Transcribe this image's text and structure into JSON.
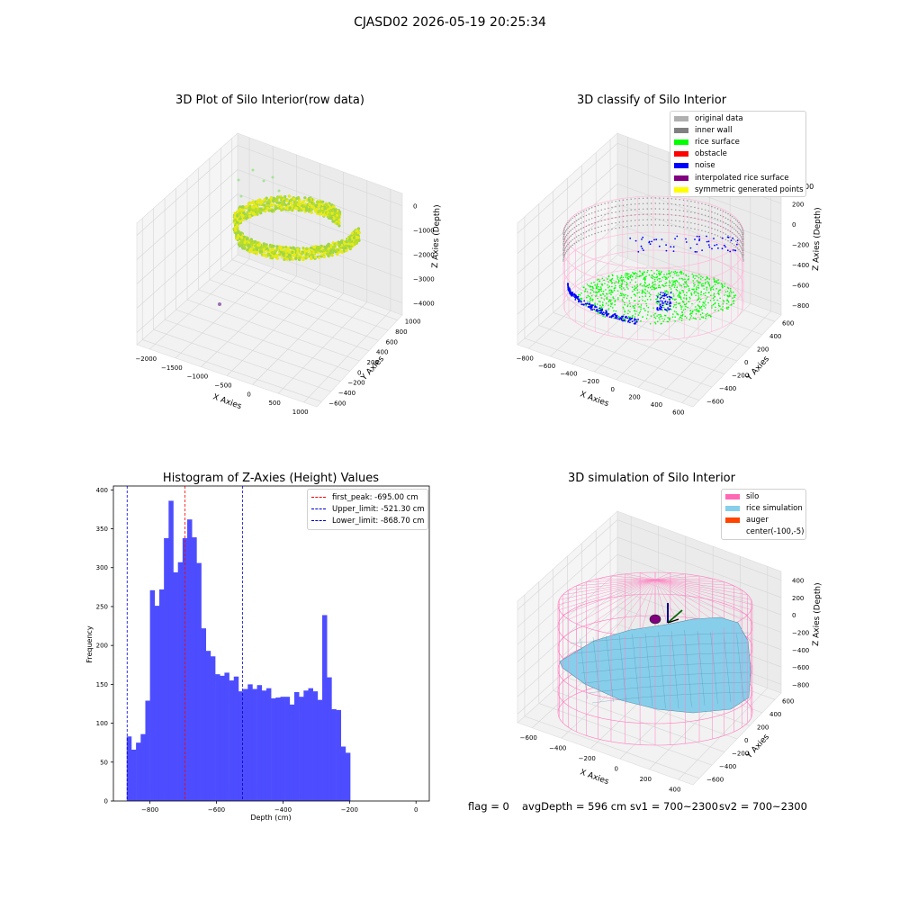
{
  "suptitle": "CJASD02 2026-05-19 20:25:34",
  "panel_raw": {
    "title": "3D Plot of Silo Interior(row data)",
    "xlabel": "X Axies",
    "ylabel": "Y Axies",
    "zlabel": "Z Axies (Depth)",
    "x_ticks": [
      "−2000",
      "−1500",
      "−1000",
      "−500",
      "0",
      "500",
      "1000"
    ],
    "y_ticks": [
      "−600",
      "−400",
      "−200",
      "0",
      "200",
      "400",
      "600",
      "800",
      "1000"
    ],
    "z_ticks": [
      "0",
      "−1000",
      "−2000",
      "−3000",
      "−4000"
    ],
    "colors": {
      "main": "#b7dd2a",
      "light": "#e6ea1c",
      "outlier": "#9a6fb0"
    }
  },
  "panel_classify": {
    "title": "3D classify of Silo Interior",
    "xlabel": "X Axies",
    "ylabel": "Y Axies",
    "zlabel": "Z Axies (Depth)",
    "x_ticks": [
      "−800",
      "−600",
      "−400",
      "−200",
      "0",
      "200",
      "400",
      "600"
    ],
    "y_ticks": [
      "−600",
      "−400",
      "−200",
      "0",
      "200",
      "400",
      "600"
    ],
    "z_ticks": [
      "200",
      "0",
      "−200",
      "−400",
      "−600",
      "−800"
    ],
    "z_tick_partial": "00",
    "legend": [
      {
        "label": "original data",
        "color": "#b0b0b0"
      },
      {
        "label": "inner wall",
        "color": "#808080"
      },
      {
        "label": "rice surface",
        "color": "#00ff00"
      },
      {
        "label": "obstacle",
        "color": "#ff0000"
      },
      {
        "label": "noise",
        "color": "#0000ff"
      },
      {
        "label": "interpolated rice surface",
        "color": "#800080"
      },
      {
        "label": "symmetric generated points",
        "color": "#ffff00"
      }
    ],
    "colors": {
      "silo_wire": "#ffb6d9"
    }
  },
  "panel_hist": {
    "title": "Histogram of Z-Axies (Height) Values",
    "xlabel": "Depth (cm)",
    "ylabel": "Frequency",
    "legend": [
      {
        "label": "first_peak: -695.00 cm",
        "color": "#ff0000"
      },
      {
        "label": "Upper_limit: -521.30 cm",
        "color": "#0000cc"
      },
      {
        "label": "Lower_limit: -868.70 cm",
        "color": "#0000cc"
      }
    ]
  },
  "panel_sim": {
    "title": "3D simulation of Silo Interior",
    "xlabel": "X Axies",
    "ylabel": "Y Axies",
    "zlabel": "Z Axies (Depth)",
    "x_ticks": [
      "−600",
      "−400",
      "−200",
      "0",
      "200",
      "400"
    ],
    "y_ticks": [
      "−600",
      "−400",
      "−200",
      "0",
      "200",
      "400",
      "600"
    ],
    "z_ticks": [
      "400",
      "200",
      "0",
      "−200",
      "−400",
      "−600",
      "−800"
    ],
    "legend": [
      {
        "label": "silo",
        "color": "#ff69b4"
      },
      {
        "label": "rice simulation",
        "color": "#87ceeb"
      },
      {
        "label": "auger",
        "color": "#ff4500"
      },
      {
        "label": "center(-100,-5)",
        "color": ""
      }
    ],
    "colors": {
      "silo_wire": "#ff7fbf",
      "surface": "#87ceeb",
      "marker": "#800080"
    }
  },
  "status": {
    "flag": "flag = 0",
    "avg": "avgDepth = 596 cm",
    "sv1": "sv1 = 700~2300",
    "sv2": "sv2 = 700~2300"
  },
  "chart_data": [
    {
      "type": "scatter",
      "title": "3D Plot of Silo Interior(row data)",
      "xlabel": "X Axies",
      "ylabel": "Y Axies",
      "zlabel": "Z Axies (Depth)",
      "xlim": [
        -2200,
        1000
      ],
      "ylim": [
        -700,
        1000
      ],
      "zlim": [
        -4500,
        0
      ],
      "grid": true
    },
    {
      "type": "scatter",
      "title": "3D classify of Silo Interior",
      "xlabel": "X Axies",
      "ylabel": "Y Axies",
      "zlabel": "Z Axies (Depth)",
      "xlim": [
        -850,
        650
      ],
      "ylim": [
        -700,
        700
      ],
      "zlim": [
        -900,
        300
      ],
      "series": [
        {
          "name": "original data"
        },
        {
          "name": "inner wall"
        },
        {
          "name": "rice surface"
        },
        {
          "name": "obstacle"
        },
        {
          "name": "noise"
        },
        {
          "name": "interpolated rice surface"
        },
        {
          "name": "symmetric generated points"
        }
      ],
      "legend_position": "upper right",
      "grid": true
    },
    {
      "type": "bar",
      "title": "Histogram of Z-Axies (Height) Values",
      "xlabel": "Depth (cm)",
      "ylabel": "Frequency",
      "bin_start": -870,
      "bin_width": 14,
      "values": [
        83,
        66,
        75,
        86,
        129,
        271,
        251,
        272,
        338,
        386,
        294,
        307,
        338,
        362,
        339,
        306,
        222,
        193,
        186,
        163,
        161,
        165,
        155,
        160,
        141,
        144,
        150,
        144,
        149,
        142,
        145,
        132,
        133,
        134,
        134,
        124,
        140,
        134,
        142,
        145,
        141,
        130,
        239,
        159,
        118,
        117,
        70,
        62
      ],
      "xlim": [
        -910,
        40
      ],
      "ylim": [
        0,
        405
      ],
      "x_ticks": [
        -800,
        -600,
        -400,
        -200,
        0
      ],
      "y_ticks": [
        0,
        50,
        100,
        150,
        200,
        250,
        300,
        350,
        400
      ],
      "vlines": [
        {
          "name": "first_peak: -695.00 cm",
          "x": -695.0,
          "color": "#ff0000"
        },
        {
          "name": "Upper_limit: -521.30 cm",
          "x": -521.3,
          "color": "#0000cc"
        },
        {
          "name": "Lower_limit: -868.70 cm",
          "x": -868.7,
          "color": "#0000cc"
        }
      ],
      "bar_color": "#4d4dff",
      "legend_position": "upper right"
    },
    {
      "type": "area",
      "title": "3D simulation of Silo Interior",
      "xlabel": "X Axies",
      "ylabel": "Y Axies",
      "zlabel": "Z Axies (Depth)",
      "xlim": [
        -750,
        550
      ],
      "ylim": [
        -700,
        700
      ],
      "zlim": [
        -900,
        500
      ],
      "series": [
        {
          "name": "silo"
        },
        {
          "name": "rice simulation"
        },
        {
          "name": "auger"
        },
        {
          "name": "center(-100,-5)"
        }
      ],
      "legend_position": "upper right",
      "grid": true
    }
  ]
}
